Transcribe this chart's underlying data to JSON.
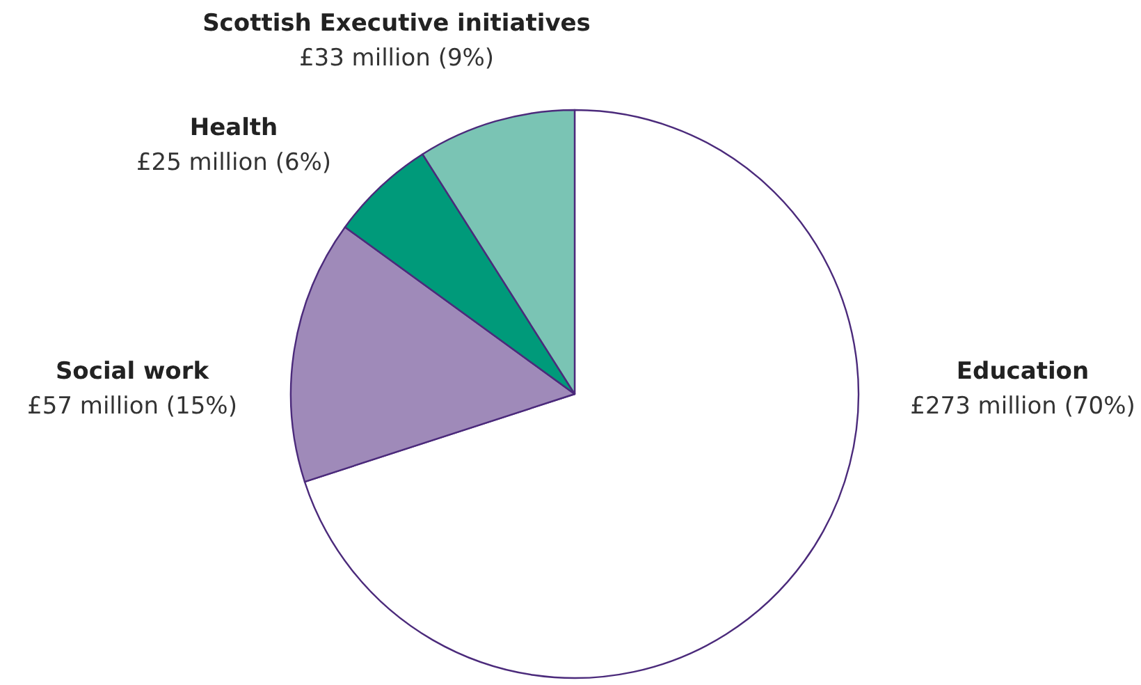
{
  "chart_data": {
    "type": "pie",
    "categories": [
      "Education",
      "Social work",
      "Health",
      "Scottish Executive initiatives"
    ],
    "values": [
      70,
      15,
      6,
      9
    ],
    "colors": [
      "#ffffff",
      "#9f8ab9",
      "#009a7a",
      "#7ac4b4"
    ],
    "value_labels": [
      "£273 million (70%)",
      "£57 million (15%)",
      "£25 million (6%)",
      "£33 million (9%)"
    ]
  }
}
